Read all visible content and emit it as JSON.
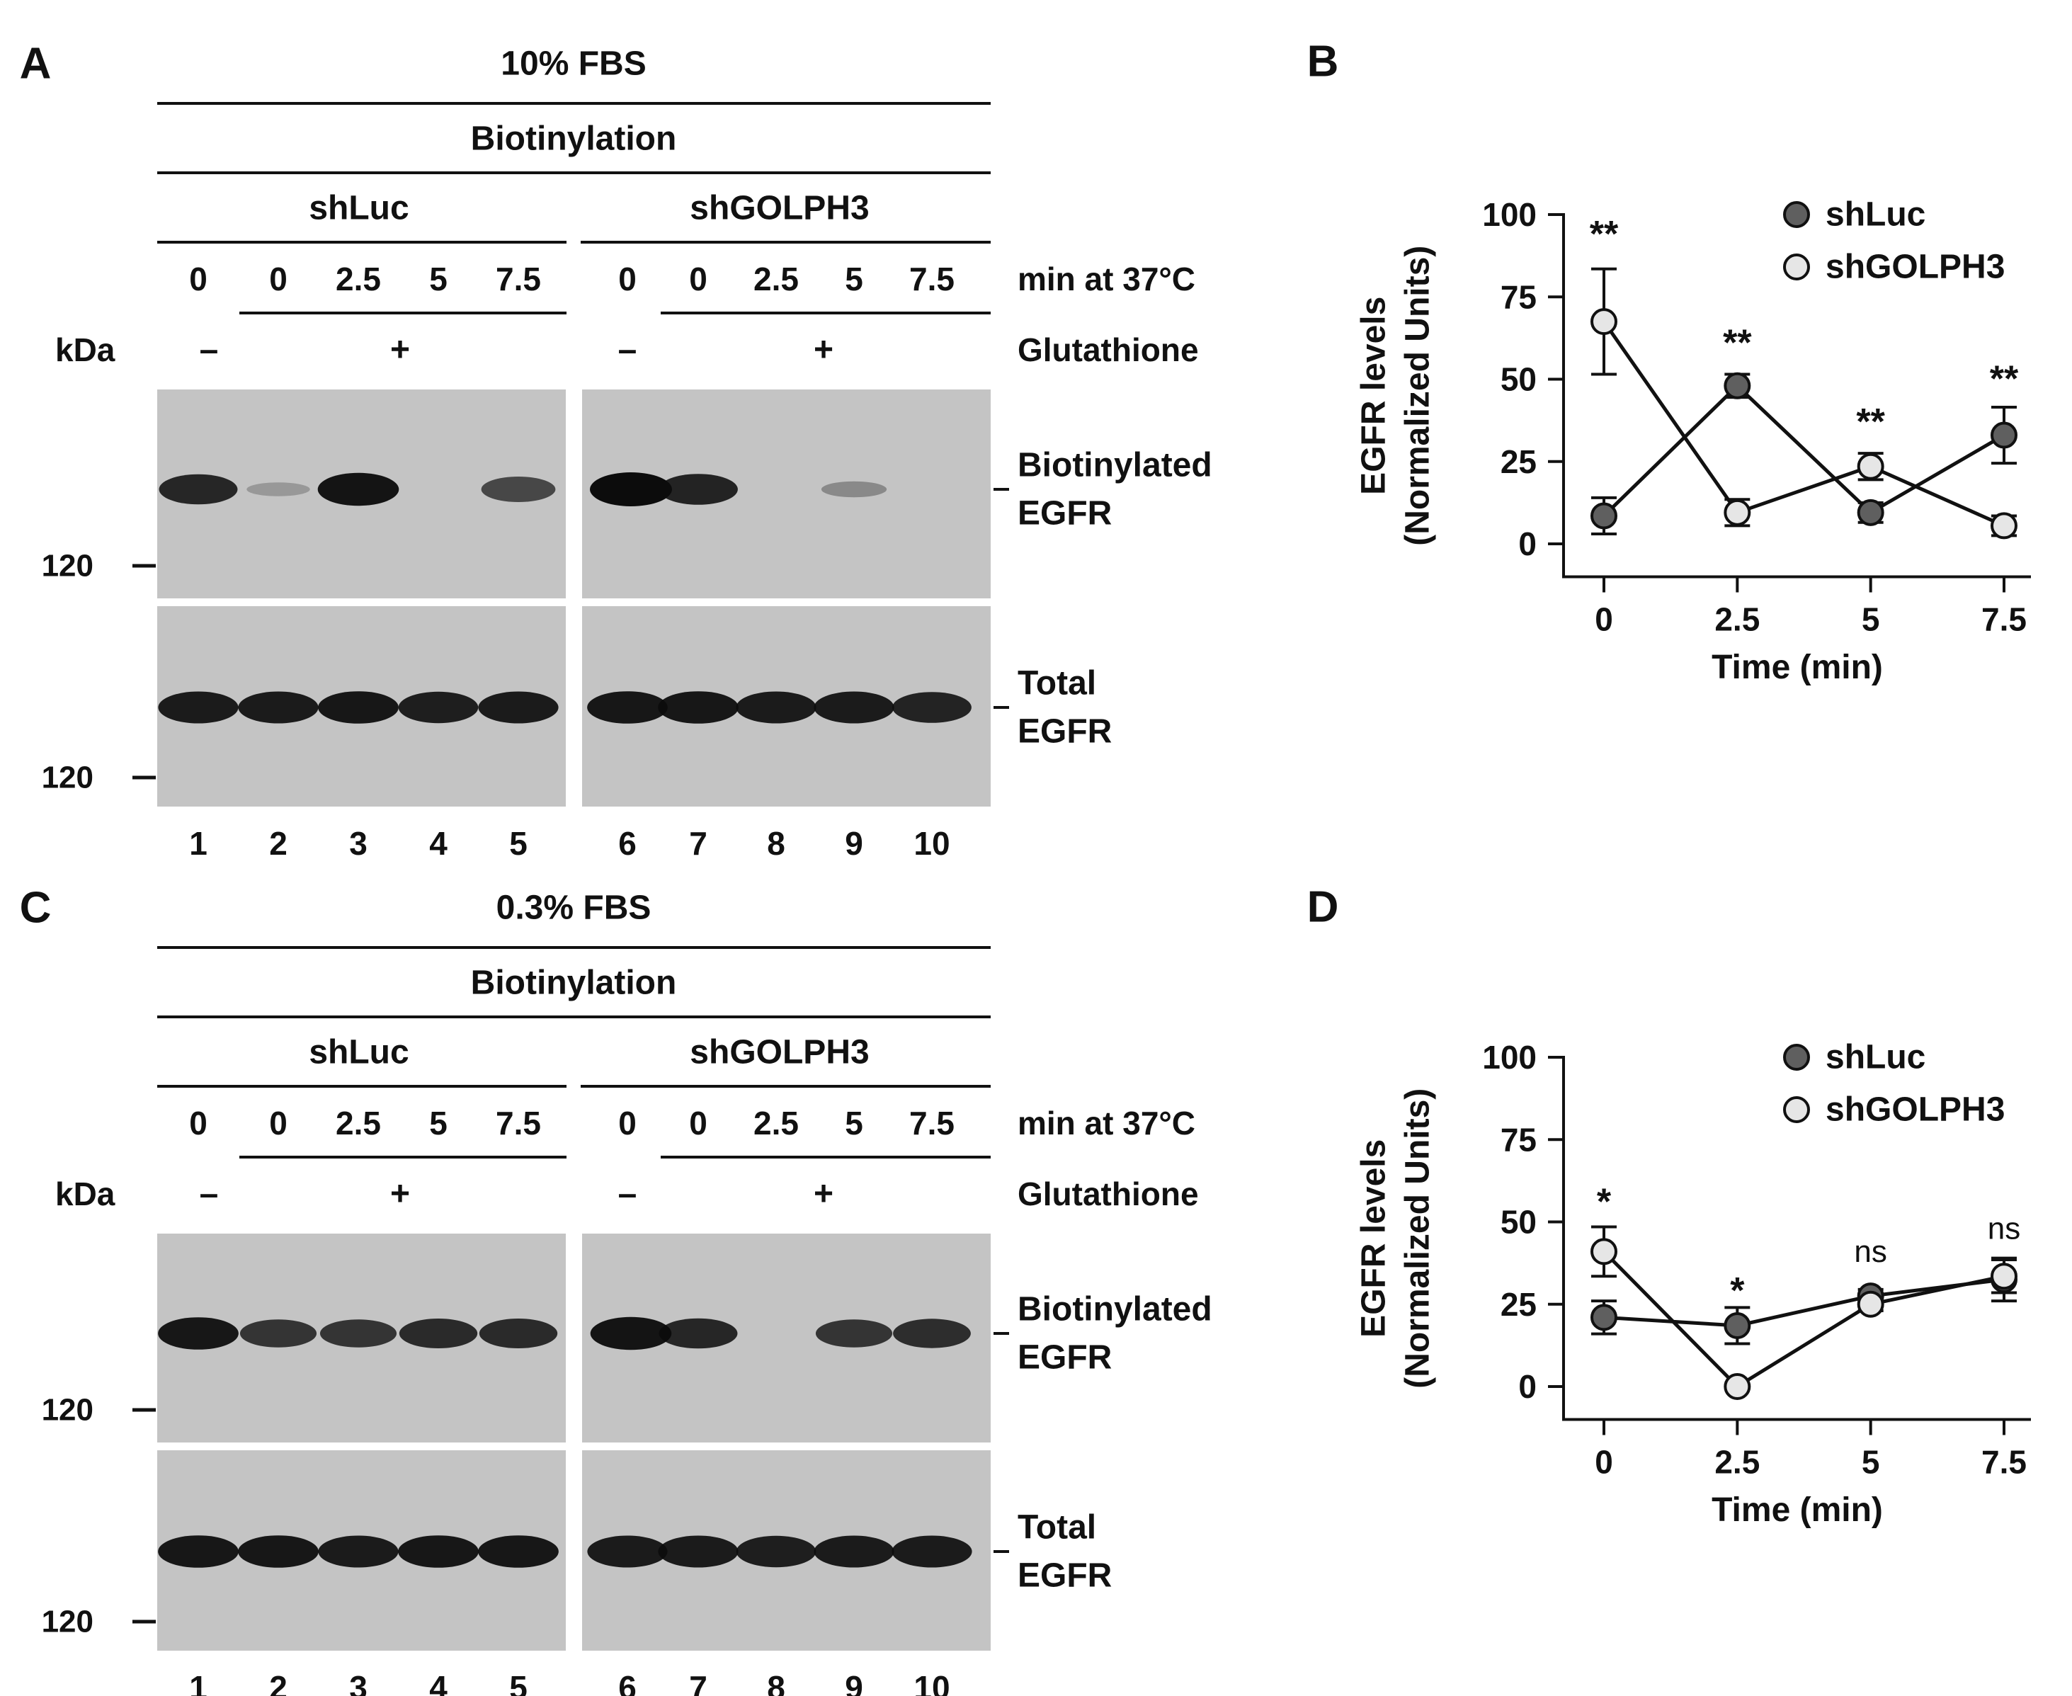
{
  "panels": {
    "A": {
      "letter": "A",
      "condition": "10% FBS",
      "method": "Biotinylation",
      "groups": [
        "shLuc",
        "shGOLPH3"
      ],
      "times": [
        "0",
        "0",
        "2.5",
        "5",
        "7.5",
        "0",
        "0",
        "2.5",
        "5",
        "7.5"
      ],
      "time_label": "min at 37°C",
      "kda_label": "kDa",
      "glutathione_signs": [
        "–",
        "+",
        "–",
        "+"
      ],
      "glutathione_label": "Glutathione",
      "marker": "120",
      "blot_labels": [
        [
          "Biotinylated",
          "EGFR"
        ],
        [
          "Total",
          "EGFR"
        ]
      ],
      "lanes": [
        "1",
        "2",
        "3",
        "4",
        "5",
        "6",
        "7",
        "8",
        "9",
        "10"
      ],
      "biotinylated_intensity": [
        0.82,
        0.05,
        0.95,
        0.0,
        0.6,
        1.0,
        0.85,
        0.0,
        0.15,
        0.0
      ],
      "total_intensity": [
        0.9,
        0.9,
        0.92,
        0.88,
        0.9,
        0.92,
        0.92,
        0.9,
        0.9,
        0.85
      ]
    },
    "C": {
      "letter": "C",
      "condition": "0.3% FBS",
      "method": "Biotinylation",
      "groups": [
        "shLuc",
        "shGOLPH3"
      ],
      "times": [
        "0",
        "0",
        "2.5",
        "5",
        "7.5",
        "0",
        "0",
        "2.5",
        "5",
        "7.5"
      ],
      "time_label": "min at 37°C",
      "kda_label": "kDa",
      "glutathione_signs": [
        "–",
        "+",
        "–",
        "+"
      ],
      "glutathione_label": "Glutathione",
      "marker": "120",
      "blot_labels": [
        [
          "Biotinylated",
          "EGFR"
        ],
        [
          "Total",
          "EGFR"
        ]
      ],
      "lanes": [
        "1",
        "2",
        "3",
        "4",
        "5",
        "6",
        "7",
        "8",
        "9",
        "10"
      ],
      "biotinylated_intensity": [
        0.92,
        0.72,
        0.72,
        0.8,
        0.8,
        0.95,
        0.82,
        0.0,
        0.72,
        0.78
      ],
      "total_intensity": [
        0.92,
        0.92,
        0.9,
        0.92,
        0.92,
        0.9,
        0.9,
        0.88,
        0.9,
        0.9
      ]
    }
  },
  "chart_data": [
    {
      "panel": "B",
      "type": "line",
      "x": [
        0,
        2.5,
        5,
        7.5
      ],
      "xlabel": "Time (min)",
      "ylabel": [
        "EGFR levels",
        "(Normalized Units)"
      ],
      "yticks": [
        0,
        25,
        50,
        75,
        100
      ],
      "xticks": [
        "0",
        "2.5",
        "5",
        "7.5"
      ],
      "ylim": [
        -10,
        110
      ],
      "series": [
        {
          "name": "shLuc",
          "values": [
            8.5,
            48,
            9.5,
            33
          ],
          "errors": [
            5.5,
            3.5,
            3,
            8.5
          ],
          "color": "#5f5f5f"
        },
        {
          "name": "shGOLPH3",
          "values": [
            67.5,
            9.5,
            23.5,
            5.5
          ],
          "errors": [
            16,
            4,
            4,
            3
          ],
          "color": "#e6e6e6"
        }
      ],
      "annotations": [
        {
          "x": 0,
          "text": "**",
          "y": 94
        },
        {
          "x": 2.5,
          "text": "**",
          "y": 61
        },
        {
          "x": 5,
          "text": "**",
          "y": 37
        },
        {
          "x": 7.5,
          "text": "**",
          "y": 50
        }
      ],
      "legend_position": "top-right"
    },
    {
      "panel": "D",
      "type": "line",
      "x": [
        0,
        2.5,
        5,
        7.5
      ],
      "xlabel": "Time (min)",
      "ylabel": [
        "EGFR levels",
        "(Normalized Units)"
      ],
      "yticks": [
        0,
        25,
        50,
        75,
        100
      ],
      "xticks": [
        "0",
        "2.5",
        "5",
        "7.5"
      ],
      "ylim": [
        -10,
        110
      ],
      "series": [
        {
          "name": "shLuc",
          "values": [
            21,
            18.5,
            27.5,
            32.5
          ],
          "errors": [
            5,
            5.5,
            2,
            6.5
          ],
          "color": "#5f5f5f"
        },
        {
          "name": "shGOLPH3",
          "values": [
            41,
            0,
            25,
            33.5
          ],
          "errors": [
            7.5,
            1,
            2,
            5
          ],
          "color": "#e6e6e6"
        }
      ],
      "annotations": [
        {
          "x": 0,
          "text": "*",
          "y": 56
        },
        {
          "x": 2.5,
          "text": "*",
          "y": 29
        },
        {
          "x": 5,
          "text": "ns",
          "y": 41
        },
        {
          "x": 7.5,
          "text": "ns",
          "y": 48
        }
      ],
      "legend_position": "top-right"
    }
  ]
}
